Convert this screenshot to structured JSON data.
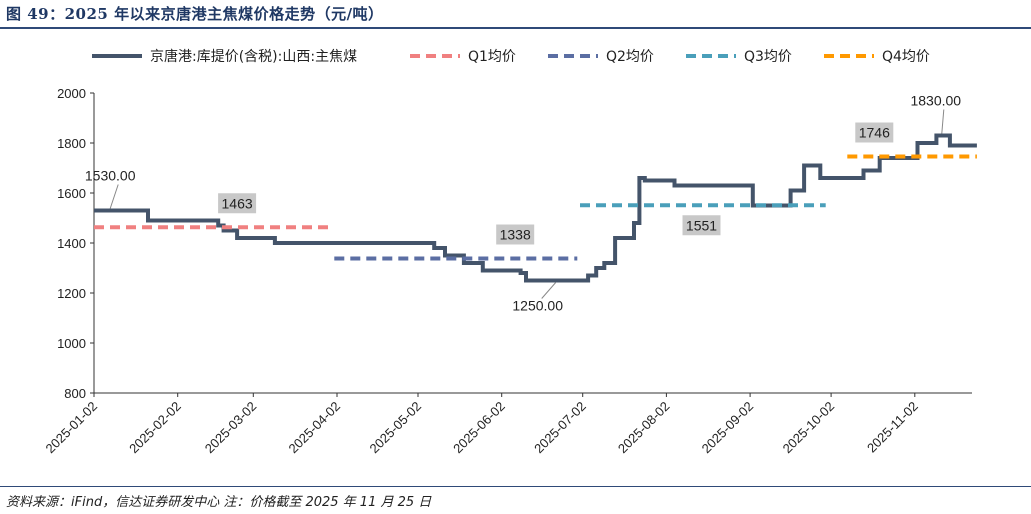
{
  "header": {
    "figure_title": "图 49：2025 年以来京唐港主焦煤价格走势（元/吨）"
  },
  "footer": {
    "source": "资料来源：iFind，信达证券研发中心 注：价格截至 2025 年 11 月 25 日"
  },
  "chart_data": {
    "type": "line",
    "title": "",
    "xlabel": "",
    "ylabel": "",
    "ylim": [
      800,
      2000
    ],
    "y_ticks": [
      800,
      1000,
      1200,
      1400,
      1600,
      1800,
      2000
    ],
    "x_range": [
      "2025-01-02",
      "2025-11-25"
    ],
    "x_ticks": [
      "2025-01-02",
      "2025-02-02",
      "2025-03-02",
      "2025-04-02",
      "2025-05-02",
      "2025-06-02",
      "2025-07-02",
      "2025-08-02",
      "2025-09-02",
      "2025-10-02",
      "2025-11-02"
    ],
    "grid": false,
    "legend_position": "top",
    "colors": {
      "price": "#44546a",
      "q1": "#f08080",
      "q2": "#5b6ea3",
      "q3": "#4a9fba",
      "q4": "#ff9900",
      "label_box": "#c8c8c8"
    },
    "series": [
      {
        "name": "京唐港:库提价(含税):山西:主焦煤",
        "style": "solid",
        "points": [
          [
            "2025-01-02",
            1530
          ],
          [
            "2025-01-22",
            1530
          ],
          [
            "2025-01-22",
            1490
          ],
          [
            "2025-02-17",
            1490
          ],
          [
            "2025-02-17",
            1470
          ],
          [
            "2025-02-19",
            1470
          ],
          [
            "2025-02-19",
            1450
          ],
          [
            "2025-02-24",
            1450
          ],
          [
            "2025-02-24",
            1420
          ],
          [
            "2025-03-10",
            1420
          ],
          [
            "2025-03-10",
            1400
          ],
          [
            "2025-05-08",
            1400
          ],
          [
            "2025-05-08",
            1380
          ],
          [
            "2025-05-12",
            1380
          ],
          [
            "2025-05-12",
            1350
          ],
          [
            "2025-05-19",
            1350
          ],
          [
            "2025-05-19",
            1320
          ],
          [
            "2025-05-26",
            1320
          ],
          [
            "2025-05-26",
            1290
          ],
          [
            "2025-06-09",
            1290
          ],
          [
            "2025-06-09",
            1280
          ],
          [
            "2025-06-11",
            1280
          ],
          [
            "2025-06-11",
            1250
          ],
          [
            "2025-07-04",
            1250
          ],
          [
            "2025-07-04",
            1270
          ],
          [
            "2025-07-07",
            1270
          ],
          [
            "2025-07-07",
            1300
          ],
          [
            "2025-07-10",
            1300
          ],
          [
            "2025-07-10",
            1320
          ],
          [
            "2025-07-14",
            1320
          ],
          [
            "2025-07-14",
            1420
          ],
          [
            "2025-07-21",
            1420
          ],
          [
            "2025-07-21",
            1480
          ],
          [
            "2025-07-23",
            1480
          ],
          [
            "2025-07-23",
            1660
          ],
          [
            "2025-07-25",
            1660
          ],
          [
            "2025-07-25",
            1650
          ],
          [
            "2025-08-05",
            1650
          ],
          [
            "2025-08-05",
            1630
          ],
          [
            "2025-09-03",
            1630
          ],
          [
            "2025-09-03",
            1550
          ],
          [
            "2025-09-17",
            1550
          ],
          [
            "2025-09-17",
            1610
          ],
          [
            "2025-09-22",
            1610
          ],
          [
            "2025-09-22",
            1710
          ],
          [
            "2025-09-28",
            1710
          ],
          [
            "2025-09-28",
            1660
          ],
          [
            "2025-10-14",
            1660
          ],
          [
            "2025-10-14",
            1690
          ],
          [
            "2025-10-20",
            1690
          ],
          [
            "2025-10-20",
            1740
          ],
          [
            "2025-11-03",
            1740
          ],
          [
            "2025-11-03",
            1800
          ],
          [
            "2025-11-10",
            1800
          ],
          [
            "2025-11-10",
            1830
          ],
          [
            "2025-11-15",
            1830
          ],
          [
            "2025-11-15",
            1790
          ],
          [
            "2025-11-25",
            1790
          ]
        ]
      },
      {
        "name": "Q1均价",
        "style": "dashed",
        "value": 1463,
        "from": "2025-01-02",
        "to": "2025-03-31"
      },
      {
        "name": "Q2均价",
        "style": "dashed",
        "value": 1338,
        "from": "2025-04-01",
        "to": "2025-06-30"
      },
      {
        "name": "Q3均价",
        "style": "dashed",
        "value": 1551,
        "from": "2025-07-01",
        "to": "2025-09-30"
      },
      {
        "name": "Q4均价",
        "style": "dashed",
        "value": 1746,
        "from": "2025-10-08",
        "to": "2025-11-25"
      }
    ],
    "annotations": [
      {
        "text": "1530.00",
        "date": "2025-01-08",
        "value": 1530,
        "type": "callout",
        "pos": "above"
      },
      {
        "text": "1250.00",
        "date": "2025-06-22",
        "value": 1250,
        "type": "callout",
        "pos": "below"
      },
      {
        "text": "1830.00",
        "date": "2025-11-12",
        "value": 1830,
        "type": "callout",
        "pos": "above"
      },
      {
        "text": "1463",
        "date": "2025-02-24",
        "value": 1463,
        "type": "box",
        "pos": "above"
      },
      {
        "text": "1338",
        "date": "2025-06-07",
        "value": 1338,
        "type": "box",
        "pos": "above"
      },
      {
        "text": "1551",
        "date": "2025-08-15",
        "value": 1551,
        "type": "box",
        "pos": "below"
      },
      {
        "text": "1746",
        "date": "2025-10-18",
        "value": 1746,
        "type": "box",
        "pos": "above"
      }
    ]
  }
}
